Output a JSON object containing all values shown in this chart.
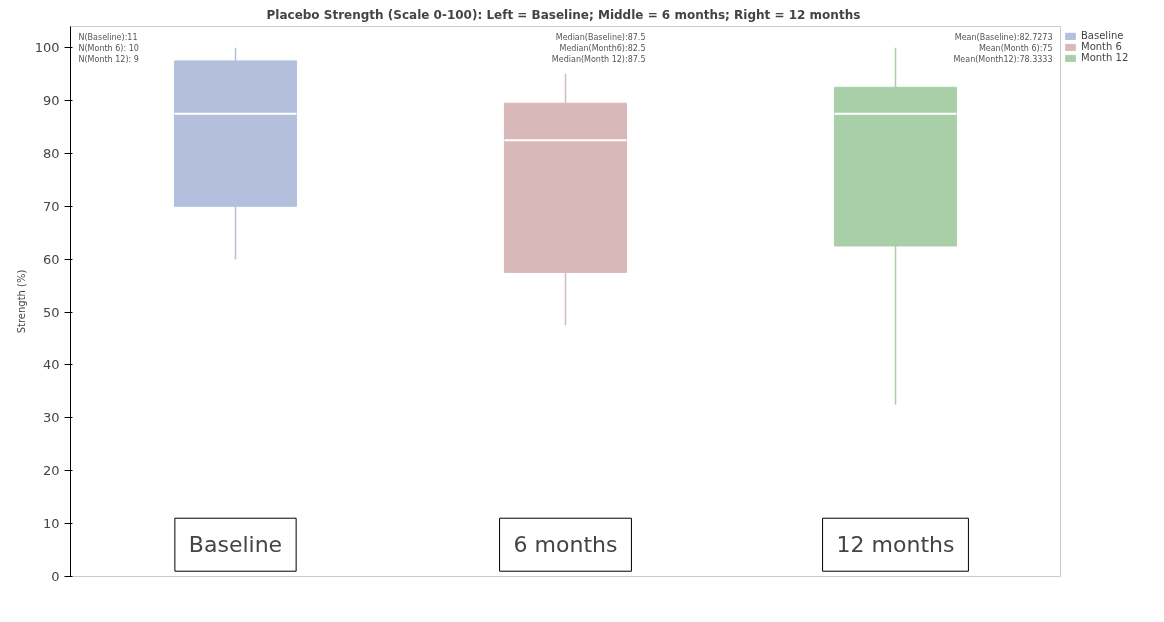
{
  "chart_data": {
    "type": "box",
    "title": "Placebo Strength (Scale 0-100):  Left = Baseline; Middle = 6 months; Right = 12 months",
    "ylabel": "Strength (%)",
    "categories": [
      "Baseline",
      "6 months",
      "12 months"
    ],
    "series": [
      {
        "name": "Baseline",
        "color": "#b3bfdd",
        "boxes": [
          {
            "low": 60,
            "q1": 70,
            "median": 87.5,
            "q3": 97.5,
            "high": 100
          },
          null,
          null
        ]
      },
      {
        "name": "Month 6",
        "color": "#d9b8ba",
        "boxes": [
          null,
          {
            "low": 47.5,
            "q1": 57.5,
            "median": 82.5,
            "q3": 89.5,
            "high": 95
          },
          null
        ]
      },
      {
        "name": "Month 12",
        "color": "#a9cfa8",
        "boxes": [
          null,
          null,
          {
            "low": 32.5,
            "q1": 62.5,
            "median": 87.5,
            "q3": 92.5,
            "high": 100
          }
        ]
      }
    ],
    "ylim": [
      0,
      104
    ],
    "yticks": [
      0,
      10,
      20,
      30,
      40,
      50,
      60,
      70,
      80,
      90,
      100
    ],
    "annotations": [
      "N(Baseline):11",
      "N(Month 6): 10",
      "N(Month 12): 9",
      "Median(Baseline):87.5",
      "Median(Month6):82.5",
      "Median(Month 12):87.5",
      "Mean(Baseline):82.7273",
      "Mean(Month 6):75",
      "Mean(Month12):78.3333"
    ],
    "grid": false,
    "legend": "top right"
  }
}
